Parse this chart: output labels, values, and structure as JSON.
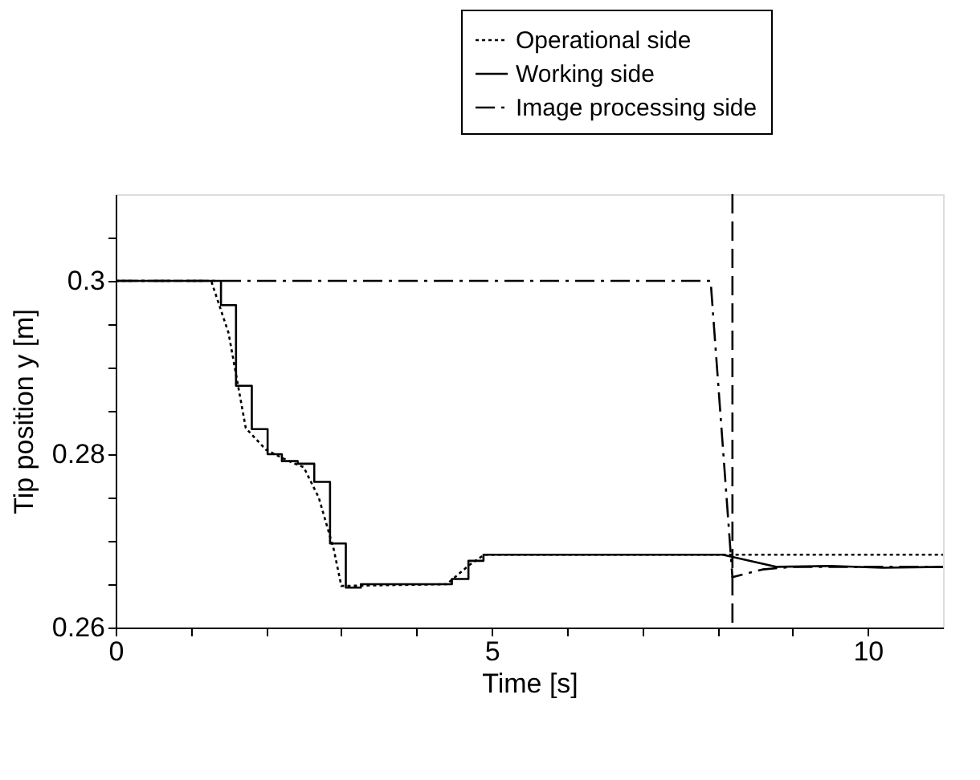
{
  "chart_data": {
    "type": "line",
    "xlabel": "Time [s]",
    "ylabel": "Tip position y [m]",
    "xlim": [
      0,
      11
    ],
    "ylim": [
      0.26,
      0.31
    ],
    "xticks": [
      0,
      {
        "value": 1,
        "label": null
      },
      {
        "value": 2,
        "label": null
      },
      {
        "value": 3,
        "label": null
      },
      {
        "value": 4,
        "label": null
      },
      5,
      {
        "value": 6,
        "label": null
      },
      {
        "value": 7,
        "label": null
      },
      {
        "value": 8,
        "label": null
      },
      {
        "value": 9,
        "label": null
      },
      10
    ],
    "yticks": [
      0.26,
      {
        "value": 0.265,
        "label": null
      },
      {
        "value": 0.27,
        "label": null
      },
      {
        "value": 0.275,
        "label": null
      },
      0.28,
      {
        "value": 0.285,
        "label": null
      },
      {
        "value": 0.29,
        "label": null
      },
      {
        "value": 0.295,
        "label": null
      },
      {
        "value": 0.3,
        "label": "0.3"
      },
      {
        "value": 0.305,
        "label": null
      }
    ],
    "legend": "top right",
    "grid": false,
    "marker": "none",
    "series": [
      {
        "name": "Operational side",
        "color": "#000000",
        "line_style": "dotted",
        "x": [
          0,
          1.27,
          1.5,
          1.73,
          2.0,
          2.3,
          2.5,
          2.7,
          2.9,
          3.0,
          4.4,
          4.7,
          4.9,
          11
        ],
        "values": [
          0.3,
          0.3,
          0.294,
          0.283,
          0.2805,
          0.2792,
          0.2785,
          0.275,
          0.269,
          0.2648,
          0.265,
          0.2672,
          0.2684,
          0.2684
        ]
      },
      {
        "name": "Working side",
        "color": "#000000",
        "line_style": "solid",
        "x": [
          0,
          1.4,
          1.4,
          1.6,
          1.6,
          1.81,
          1.81,
          2.02,
          2.02,
          2.21,
          2.21,
          2.42,
          2.42,
          2.64,
          2.64,
          2.85,
          2.85,
          3.06,
          3.06,
          3.26,
          3.26,
          4.47,
          4.47,
          4.69,
          4.69,
          4.89,
          4.89,
          8.07,
          8.79,
          9.5,
          10.2,
          11
        ],
        "values": [
          0.3,
          0.3,
          0.2972,
          0.2972,
          0.2879,
          0.2879,
          0.2829,
          0.2829,
          0.28,
          0.28,
          0.2792,
          0.2792,
          0.2789,
          0.2789,
          0.2768,
          0.2768,
          0.2697,
          0.2697,
          0.2646,
          0.2646,
          0.265,
          0.265,
          0.2656,
          0.2656,
          0.2677,
          0.2677,
          0.2684,
          0.2684,
          0.267,
          0.2671,
          0.2669,
          0.267
        ]
      },
      {
        "name": "Image processing side",
        "color": "#000000",
        "line_style": "dashdot",
        "x": [
          0,
          7.91,
          8.2,
          8.6,
          9.0,
          11
        ],
        "values": [
          0.3,
          0.3,
          0.2658,
          0.2667,
          0.267,
          0.267
        ]
      }
    ],
    "ref_lines": [
      {
        "axis": "x",
        "value": 8.2,
        "label": null,
        "color": "#000000",
        "line_style": "dashed"
      }
    ]
  }
}
